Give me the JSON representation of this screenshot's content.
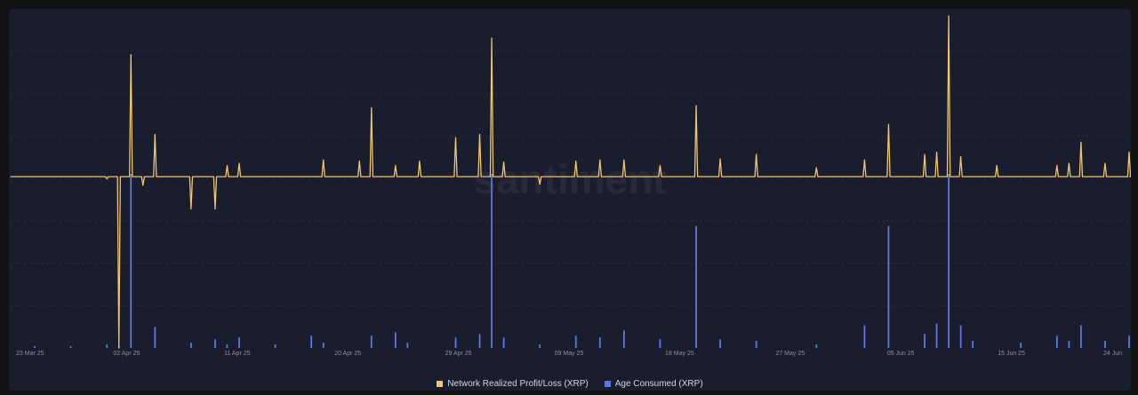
{
  "watermark": "santiment",
  "chart_data": {
    "type": "line",
    "x_ticks": [
      "23 Mar 25",
      "02 Apr 25",
      "11 Apr 25",
      "20 Apr 25",
      "29 Apr 25",
      "09 May 25",
      "18 May 25",
      "27 May 25",
      "05 Jun 25",
      "15 Jun 25",
      "24 Jun"
    ],
    "x_range": [
      "2025-03-23",
      "2025-06-24"
    ],
    "grid": true,
    "legend_position": "bottom-center",
    "series": [
      {
        "name": "Network Realized Profit/Loss (XRP)",
        "type": "line",
        "color": "#f2c66d",
        "baseline": 0,
        "range": [
          -1.6,
          1.45
        ],
        "points": [
          [
            "2025-03-23",
            0
          ],
          [
            "2025-03-31",
            -0.02
          ],
          [
            "2025-04-01",
            -1.6
          ],
          [
            "2025-04-02",
            1.1
          ],
          [
            "2025-04-03",
            -0.08
          ],
          [
            "2025-04-04",
            0.38
          ],
          [
            "2025-04-07",
            -0.3
          ],
          [
            "2025-04-09",
            -0.3
          ],
          [
            "2025-04-10",
            0.1
          ],
          [
            "2025-04-11",
            0.12
          ],
          [
            "2025-04-18",
            0.15
          ],
          [
            "2025-04-21",
            0.14
          ],
          [
            "2025-04-22",
            0.62
          ],
          [
            "2025-04-24",
            0.1
          ],
          [
            "2025-04-26",
            0.14
          ],
          [
            "2025-04-29",
            0.35
          ],
          [
            "2025-05-01",
            0.38
          ],
          [
            "2025-05-02",
            1.25
          ],
          [
            "2025-05-03",
            0.13
          ],
          [
            "2025-05-06",
            -0.07
          ],
          [
            "2025-05-09",
            0.14
          ],
          [
            "2025-05-11",
            0.15
          ],
          [
            "2025-05-13",
            0.15
          ],
          [
            "2025-05-16",
            0.1
          ],
          [
            "2025-05-19",
            0.64
          ],
          [
            "2025-05-21",
            0.16
          ],
          [
            "2025-05-24",
            0.2
          ],
          [
            "2025-05-29",
            0.08
          ],
          [
            "2025-06-02",
            0.15
          ],
          [
            "2025-06-04",
            0.47
          ],
          [
            "2025-06-07",
            0.2
          ],
          [
            "2025-06-08",
            0.22
          ],
          [
            "2025-06-09",
            1.45
          ],
          [
            "2025-06-10",
            0.18
          ],
          [
            "2025-06-13",
            0.1
          ],
          [
            "2025-06-18",
            0.1
          ],
          [
            "2025-06-19",
            0.12
          ],
          [
            "2025-06-20",
            0.31
          ],
          [
            "2025-06-22",
            0.12
          ],
          [
            "2025-06-24",
            0.22
          ]
        ]
      },
      {
        "name": "Age Consumed (XRP)",
        "type": "bar",
        "color": "#5b79e0",
        "range": [
          0,
          1.0
        ],
        "points": [
          [
            "2025-03-25",
            0.01
          ],
          [
            "2025-03-28",
            0.01
          ],
          [
            "2025-03-31",
            0.02
          ],
          [
            "2025-04-01",
            0.01
          ],
          [
            "2025-04-02",
            1.0
          ],
          [
            "2025-04-04",
            0.12
          ],
          [
            "2025-04-07",
            0.03
          ],
          [
            "2025-04-09",
            0.05
          ],
          [
            "2025-04-10",
            0.02
          ],
          [
            "2025-04-11",
            0.06
          ],
          [
            "2025-04-14",
            0.02
          ],
          [
            "2025-04-17",
            0.07
          ],
          [
            "2025-04-18",
            0.03
          ],
          [
            "2025-04-22",
            0.07
          ],
          [
            "2025-04-24",
            0.09
          ],
          [
            "2025-04-25",
            0.03
          ],
          [
            "2025-04-29",
            0.06
          ],
          [
            "2025-05-01",
            0.08
          ],
          [
            "2025-05-02",
            1.0
          ],
          [
            "2025-05-03",
            0.06
          ],
          [
            "2025-05-06",
            0.02
          ],
          [
            "2025-05-09",
            0.07
          ],
          [
            "2025-05-11",
            0.06
          ],
          [
            "2025-05-13",
            0.1
          ],
          [
            "2025-05-16",
            0.05
          ],
          [
            "2025-05-19",
            0.7
          ],
          [
            "2025-05-21",
            0.05
          ],
          [
            "2025-05-24",
            0.04
          ],
          [
            "2025-05-29",
            0.02
          ],
          [
            "2025-06-02",
            0.13
          ],
          [
            "2025-06-04",
            0.7
          ],
          [
            "2025-06-07",
            0.08
          ],
          [
            "2025-06-08",
            0.14
          ],
          [
            "2025-06-09",
            1.0
          ],
          [
            "2025-06-10",
            0.13
          ],
          [
            "2025-06-11",
            0.04
          ],
          [
            "2025-06-15",
            0.03
          ],
          [
            "2025-06-18",
            0.07
          ],
          [
            "2025-06-19",
            0.04
          ],
          [
            "2025-06-20",
            0.13
          ],
          [
            "2025-06-22",
            0.04
          ],
          [
            "2025-06-24",
            0.07
          ]
        ]
      }
    ]
  }
}
